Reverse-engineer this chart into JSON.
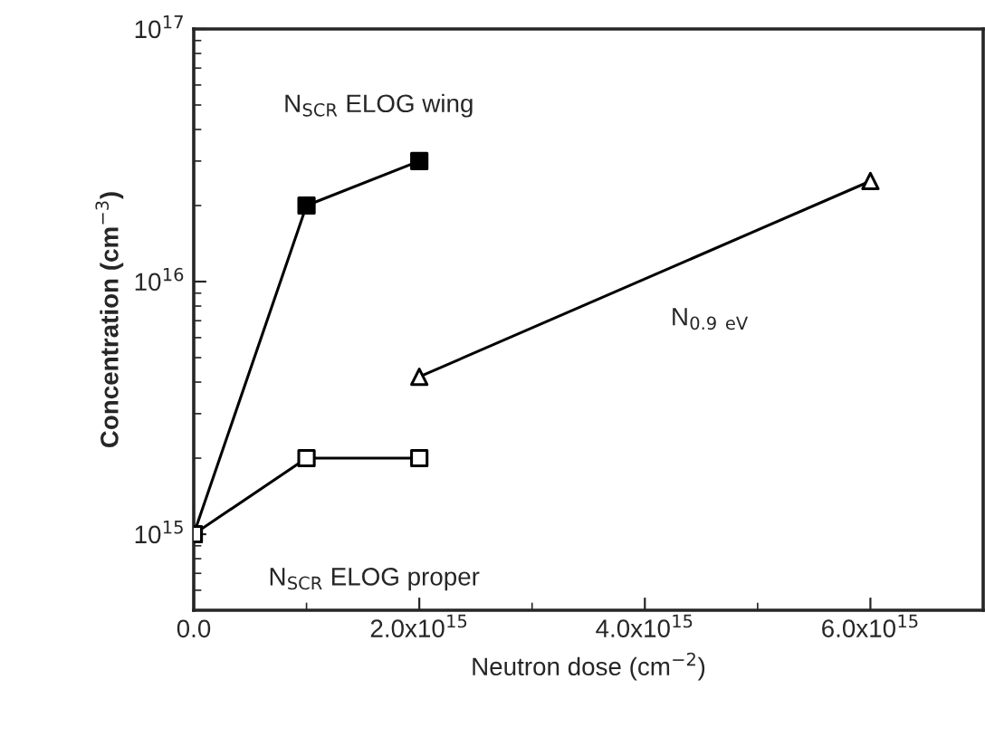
{
  "chart_data": {
    "type": "line",
    "xlabel": "Neutron dose (cm$^{−2}$)",
    "ylabel": "Concentration (cm$^{−3}$)",
    "log": "y",
    "xlim": [
      0,
      7000000000000000.0
    ],
    "ylim": [
      500000000000000.0,
      1e+17
    ],
    "xticks": [
      {
        "value": 0,
        "label": "0.0"
      },
      {
        "value": 2000000000000000.0,
        "label": "2.0x10$^{15}$"
      },
      {
        "value": 4000000000000000.0,
        "label": "4.0x10$^{15}$"
      },
      {
        "value": 6000000000000000.0,
        "label": "6.0x10$^{15}$"
      }
    ],
    "yticks": [
      {
        "value": 1000000000000000.0,
        "label": "10$^{15}$"
      },
      {
        "value": 1e+16,
        "label": "10$^{16}$"
      },
      {
        "value": 1e+17,
        "label": "10$^{17}$"
      }
    ],
    "grid": false,
    "legend": false,
    "series": [
      {
        "name": "N$_{SCR}$ ELOG wing",
        "color": "#000000",
        "marker": "square",
        "x": [
          0,
          1000000000000000.0,
          2000000000000000.0
        ],
        "values": [
          1000000000000000.0,
          2e+16,
          3e+16
        ]
      },
      {
        "name": "N$_{SCR}$ ELOG proper",
        "color": "#000000",
        "marker": "square",
        "x": [
          0,
          1000000000000000.0,
          2000000000000000.0
        ],
        "values": [
          1000000000000000.0,
          2000000000000000.0,
          2000000000000000.0
        ]
      },
      {
        "name": "N$_{0.9 eV}$",
        "color": "#000000",
        "marker": "triangle",
        "x": [
          2000000000000000.0,
          6000000000000000.0
        ],
        "values": [
          4200000000000000.0,
          2.5e+16
        ]
      }
    ]
  }
}
